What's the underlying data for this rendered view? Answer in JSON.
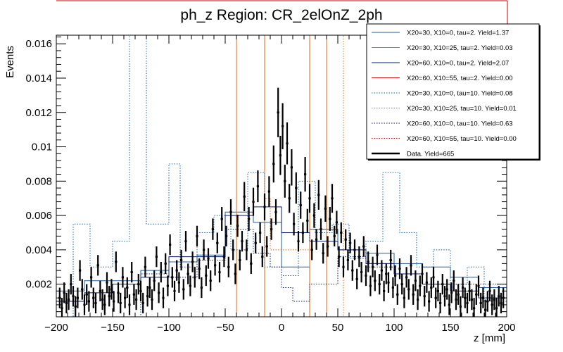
{
  "chart_data": {
    "type": "histogram",
    "title": "ph_z Region: CR_2elOnZ_2ph",
    "xlabel": "z [mm]",
    "ylabel": "Events",
    "xlim": [
      -200,
      200
    ],
    "ylim": [
      0.0001,
      0.0165
    ],
    "x_ticks": [
      -200,
      -150,
      -100,
      -50,
      0,
      50,
      100,
      150,
      200
    ],
    "x_tick_labels": [
      "−200",
      "−150",
      "−100",
      "−50",
      "0",
      "50",
      "100",
      "150",
      "200"
    ],
    "y_ticks": [
      0.002,
      0.004,
      0.006,
      0.008,
      0.01,
      0.012,
      0.014,
      0.016
    ],
    "y_tick_labels": [
      "0.002",
      "0.004",
      "0.006",
      "0.008",
      "0.01",
      "0.012",
      "0.014",
      "0.016"
    ],
    "legend_position": "top-right",
    "legend": [
      {
        "label": "X20=30, X10=0, tau=2. Yield=1.37",
        "color": "#1f5f9f",
        "style": "solid"
      },
      {
        "label": "X20=30, X10=25, tau=2. Yield=0.03",
        "color": "#e06a10",
        "style": "solid"
      },
      {
        "label": "X20=60, X10=0, tau=2. Yield=2.07",
        "color": "#0b1a6e",
        "style": "solid"
      },
      {
        "label": "X20=60, X10=55, tau=2. Yield=0.00",
        "color": "#d01010",
        "style": "solid"
      },
      {
        "label": "X20=30, X10=0, tau=10. Yield=0.08",
        "color": "#1f5f9f",
        "style": "dotted"
      },
      {
        "label": "X20=30, X10=25, tau=10. Yield=0.01",
        "color": "#e06a10",
        "style": "dotted"
      },
      {
        "label": "X20=60, X10=0, tau=10. Yield=0.63",
        "color": "#0b1a6e",
        "style": "dotted"
      },
      {
        "label": "X20=60, X10=55, tau=10. Yield=0.00",
        "color": "#d01010",
        "style": "dotted"
      },
      {
        "label": "Data. Yield=665",
        "color": "#000000",
        "style": "data"
      }
    ],
    "series": [
      {
        "name": "X20=30, X10=0, tau=2. Yield=1.37",
        "color": "#1f5f9f",
        "style": "solid",
        "edges": [
          -200,
          -175,
          -150,
          -125,
          -100,
          -75,
          -50,
          -25,
          0,
          25,
          50,
          75,
          100,
          125,
          150,
          175,
          200
        ],
        "values": [
          0.0016,
          0.0022,
          0.0022,
          0.0028,
          0.0033,
          0.0037,
          0.0062,
          0.0056,
          0.003,
          0.0052,
          0.004,
          0.0038,
          0.0032,
          0.003,
          0.0024,
          0.0018
        ]
      },
      {
        "name": "X20=30, X10=25, tau=2. Yield=0.03",
        "color": "#e06a10",
        "style": "solid",
        "edges": [
          -200,
          -40,
          -15,
          25,
          40,
          200
        ],
        "values": [
          0.0,
          0.0165,
          0.0,
          0.0165,
          0.0
        ]
      },
      {
        "name": "X20=60, X10=0, tau=2. Yield=2.07",
        "color": "#0b1a6e",
        "style": "solid",
        "edges": [
          -200,
          -175,
          -150,
          -125,
          -100,
          -75,
          -50,
          -25,
          0,
          25,
          50,
          75,
          100,
          125,
          150,
          175,
          200
        ],
        "values": [
          0.001,
          0.0015,
          0.002,
          0.0024,
          0.0036,
          0.0036,
          0.006,
          0.0065,
          0.005,
          0.0045,
          0.004,
          0.0032,
          0.0026,
          0.002,
          0.0016,
          0.0012
        ]
      },
      {
        "name": "X20=60, X10=55, tau=2. Yield=0.00",
        "color": "#d01010",
        "style": "solid",
        "edges": [],
        "values": []
      },
      {
        "name": "X20=30, X10=0, tau=10. Yield=0.08",
        "color": "#1f5f9f",
        "style": "dotted",
        "edges": [
          -200,
          -185,
          -170,
          -150,
          -135,
          -120,
          -100,
          -90,
          -75,
          -60,
          -45,
          -30,
          -15,
          0,
          15,
          30,
          45,
          60,
          75,
          90,
          105,
          120,
          135,
          150,
          165,
          180,
          200
        ],
        "values": [
          0.0,
          0.0055,
          0.003,
          0.0045,
          0.0165,
          0.0055,
          0.009,
          0.003,
          0.005,
          0.006,
          0.004,
          0.0085,
          0.003,
          0.0025,
          0.008,
          0.005,
          0.0055,
          0.0035,
          0.0045,
          0.0085,
          0.005,
          0.003,
          0.004,
          0.002,
          0.003,
          0.001
        ]
      },
      {
        "name": "X20=30, X10=25, tau=10. Yield=0.01",
        "color": "#e06a10",
        "style": "dotted",
        "edges": [
          -200,
          -15,
          -10,
          25,
          55,
          200
        ],
        "values": [
          0.0,
          0.007,
          0.004,
          0.0165,
          0.0
        ]
      },
      {
        "name": "X20=60, X10=0, tau=10. Yield=0.63",
        "color": "#0b1a6e",
        "style": "dotted",
        "edges": [
          -200,
          -125,
          -100,
          -75,
          -50,
          -25,
          -10,
          0,
          10,
          25,
          50,
          75,
          100,
          125,
          200
        ],
        "values": [
          0.0,
          0.0026,
          0.0024,
          0.0034,
          0.0052,
          0.0038,
          0.003,
          0.0018,
          0.001,
          0.002,
          0.0036,
          0.003,
          0.0026,
          0.002,
          0.0
        ]
      },
      {
        "name": "X20=60, X10=55, tau=10. Yield=0.00",
        "color": "#d01010",
        "style": "dotted",
        "edges": [],
        "values": []
      }
    ],
    "data_points": {
      "name": "Data. Yield=665",
      "color": "#000000",
      "bin_half_width": 1,
      "points": [
        [
          -197,
          0.0012
        ],
        [
          -195,
          0.0006
        ],
        [
          -193,
          0.0015
        ],
        [
          -191,
          0.0009
        ],
        [
          -189,
          0.0011
        ],
        [
          -187,
          0.002
        ],
        [
          -185,
          0.0013
        ],
        [
          -183,
          0.0007
        ],
        [
          -181,
          0.0012
        ],
        [
          -179,
          0.0028
        ],
        [
          -177,
          0.0017
        ],
        [
          -175,
          0.0008
        ],
        [
          -173,
          0.0014
        ],
        [
          -171,
          0.001
        ],
        [
          -169,
          0.0024
        ],
        [
          -167,
          0.0012
        ],
        [
          -165,
          0.0009
        ],
        [
          -163,
          0.0031
        ],
        [
          -161,
          0.0016
        ],
        [
          -159,
          0.0011
        ],
        [
          -157,
          0.0008
        ],
        [
          -155,
          0.0021
        ],
        [
          -153,
          0.0013
        ],
        [
          -151,
          0.0017
        ],
        [
          -149,
          0.001
        ],
        [
          -147,
          0.0033
        ],
        [
          -145,
          0.0015
        ],
        [
          -143,
          0.0009
        ],
        [
          -141,
          0.0024
        ],
        [
          -139,
          0.0012
        ],
        [
          -137,
          0.0018
        ],
        [
          -135,
          0.0008
        ],
        [
          -133,
          0.0027
        ],
        [
          -131,
          0.0014
        ],
        [
          -129,
          0.0011
        ],
        [
          -127,
          0.002
        ],
        [
          -125,
          0.0016
        ],
        [
          -123,
          0.0009
        ],
        [
          -121,
          0.003
        ],
        [
          -119,
          0.0013
        ],
        [
          -117,
          0.0018
        ],
        [
          -115,
          0.0011
        ],
        [
          -113,
          0.0022
        ],
        [
          -111,
          0.0036
        ],
        [
          -109,
          0.0015
        ],
        [
          -107,
          0.0027
        ],
        [
          -105,
          0.0012
        ],
        [
          -103,
          0.0032
        ],
        [
          -101,
          0.0019
        ],
        [
          -99,
          0.0043
        ],
        [
          -97,
          0.0024
        ],
        [
          -95,
          0.0016
        ],
        [
          -93,
          0.0028
        ],
        [
          -91,
          0.0021
        ],
        [
          -89,
          0.0034
        ],
        [
          -87,
          0.0017
        ],
        [
          -85,
          0.0045
        ],
        [
          -83,
          0.0026
        ],
        [
          -81,
          0.0019
        ],
        [
          -79,
          0.0033
        ],
        [
          -77,
          0.0024
        ],
        [
          -75,
          0.0048
        ],
        [
          -73,
          0.0029
        ],
        [
          -71,
          0.0018
        ],
        [
          -69,
          0.004
        ],
        [
          -67,
          0.0025
        ],
        [
          -65,
          0.0035
        ],
        [
          -63,
          0.0022
        ],
        [
          -61,
          0.0052
        ],
        [
          -59,
          0.0031
        ],
        [
          -57,
          0.0044
        ],
        [
          -55,
          0.0027
        ],
        [
          -53,
          0.0058
        ],
        [
          -51,
          0.0036
        ],
        [
          -49,
          0.0048
        ],
        [
          -47,
          0.003
        ],
        [
          -45,
          0.0062
        ],
        [
          -43,
          0.004
        ],
        [
          -41,
          0.0026
        ],
        [
          -39,
          0.0054
        ],
        [
          -37,
          0.0034
        ],
        [
          -35,
          0.0045
        ],
        [
          -33,
          0.0071
        ],
        [
          -31,
          0.004
        ],
        [
          -29,
          0.0058
        ],
        [
          -27,
          0.0032
        ],
        [
          -25,
          0.0068
        ],
        [
          -23,
          0.0044
        ],
        [
          -21,
          0.0077
        ],
        [
          -19,
          0.005
        ],
        [
          -17,
          0.0036
        ],
        [
          -15,
          0.0065
        ],
        [
          -13,
          0.0042
        ],
        [
          -11,
          0.0074
        ],
        [
          -9,
          0.0052
        ],
        [
          -7,
          0.009
        ],
        [
          -5,
          0.0062
        ],
        [
          -3,
          0.012
        ],
        [
          -1,
          0.0095
        ],
        [
          1,
          0.0112
        ],
        [
          3,
          0.008
        ],
        [
          5,
          0.0102
        ],
        [
          7,
          0.007
        ],
        [
          9,
          0.0088
        ],
        [
          11,
          0.0055
        ],
        [
          13,
          0.0076
        ],
        [
          15,
          0.0045
        ],
        [
          17,
          0.0066
        ],
        [
          19,
          0.005
        ],
        [
          21,
          0.0084
        ],
        [
          23,
          0.0057
        ],
        [
          25,
          0.007
        ],
        [
          27,
          0.004
        ],
        [
          29,
          0.006
        ],
        [
          31,
          0.0046
        ],
        [
          33,
          0.0072
        ],
        [
          35,
          0.0052
        ],
        [
          37,
          0.0038
        ],
        [
          39,
          0.0064
        ],
        [
          41,
          0.0042
        ],
        [
          43,
          0.0058
        ],
        [
          45,
          0.007
        ],
        [
          47,
          0.0048
        ],
        [
          49,
          0.0056
        ],
        [
          51,
          0.0036
        ],
        [
          53,
          0.005
        ],
        [
          55,
          0.003
        ],
        [
          57,
          0.0046
        ],
        [
          59,
          0.0034
        ],
        [
          61,
          0.0044
        ],
        [
          63,
          0.0028
        ],
        [
          65,
          0.004
        ],
        [
          67,
          0.0023
        ],
        [
          69,
          0.0036
        ],
        [
          71,
          0.0027
        ],
        [
          73,
          0.0042
        ],
        [
          75,
          0.0025
        ],
        [
          77,
          0.0033
        ],
        [
          79,
          0.0019
        ],
        [
          81,
          0.003
        ],
        [
          83,
          0.0022
        ],
        [
          85,
          0.0037
        ],
        [
          87,
          0.002
        ],
        [
          89,
          0.0028
        ],
        [
          91,
          0.0016
        ],
        [
          93,
          0.0026
        ],
        [
          95,
          0.0021
        ],
        [
          97,
          0.0034
        ],
        [
          99,
          0.0018
        ],
        [
          101,
          0.0025
        ],
        [
          103,
          0.0014
        ],
        [
          105,
          0.0029
        ],
        [
          107,
          0.002
        ],
        [
          109,
          0.0012
        ],
        [
          111,
          0.0024
        ],
        [
          113,
          0.0017
        ],
        [
          115,
          0.0031
        ],
        [
          117,
          0.0014
        ],
        [
          119,
          0.0022
        ],
        [
          121,
          0.0011
        ],
        [
          123,
          0.0019
        ],
        [
          125,
          0.0026
        ],
        [
          127,
          0.0013
        ],
        [
          129,
          0.0021
        ],
        [
          131,
          0.001
        ],
        [
          133,
          0.0018
        ],
        [
          135,
          0.0024
        ],
        [
          137,
          0.0012
        ],
        [
          139,
          0.0016
        ],
        [
          141,
          0.0009
        ],
        [
          143,
          0.002
        ],
        [
          145,
          0.0013
        ],
        [
          147,
          0.0017
        ],
        [
          149,
          0.0008
        ],
        [
          151,
          0.0015
        ],
        [
          153,
          0.0022
        ],
        [
          155,
          0.0011
        ],
        [
          157,
          0.0014
        ],
        [
          159,
          0.0007
        ],
        [
          161,
          0.0018
        ],
        [
          163,
          0.0012
        ],
        [
          165,
          0.0009
        ],
        [
          167,
          0.0016
        ],
        [
          169,
          0.0011
        ],
        [
          171,
          0.0006
        ],
        [
          173,
          0.0014
        ],
        [
          175,
          0.0019
        ],
        [
          177,
          0.0009
        ],
        [
          179,
          0.0012
        ],
        [
          181,
          0.0005
        ],
        [
          183,
          0.001
        ],
        [
          185,
          0.0016
        ],
        [
          187,
          0.0008
        ],
        [
          189,
          0.0011
        ],
        [
          191,
          0.0006
        ],
        [
          193,
          0.0013
        ],
        [
          195,
          0.0009
        ],
        [
          197,
          0.0012
        ]
      ]
    }
  }
}
